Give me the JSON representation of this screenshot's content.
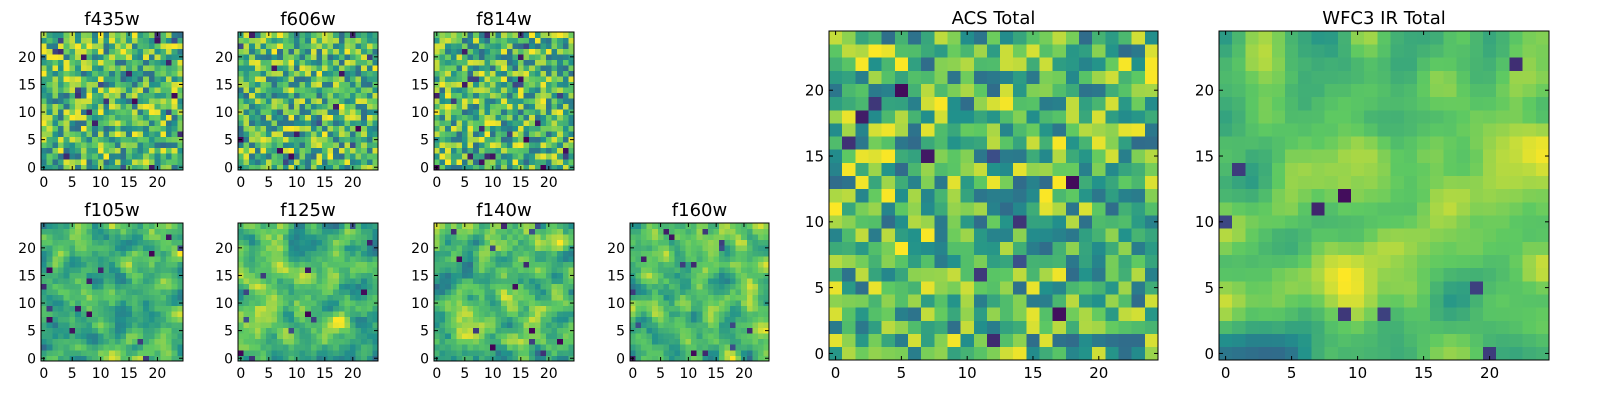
{
  "colormap": {
    "name": "viridis",
    "stops": [
      "#440154",
      "#3b528b",
      "#21918c",
      "#5ec962",
      "#fde725"
    ]
  },
  "chart_data": [
    {
      "type": "heatmap",
      "title": "f435w",
      "grid": [
        25,
        25
      ],
      "xlim": [
        -0.5,
        24.5
      ],
      "ylim": [
        -0.5,
        24.5
      ],
      "xticks": [
        "0",
        "5",
        "10",
        "15",
        "20"
      ],
      "yticks": [
        "0",
        "5",
        "10",
        "15",
        "20"
      ]
    },
    {
      "type": "heatmap",
      "title": "f606w",
      "grid": [
        25,
        25
      ],
      "xlim": [
        -0.5,
        24.5
      ],
      "ylim": [
        -0.5,
        24.5
      ],
      "xticks": [
        "0",
        "5",
        "10",
        "15",
        "20"
      ],
      "yticks": [
        "0",
        "5",
        "10",
        "15",
        "20"
      ]
    },
    {
      "type": "heatmap",
      "title": "f814w",
      "grid": [
        25,
        25
      ],
      "xlim": [
        -0.5,
        24.5
      ],
      "ylim": [
        -0.5,
        24.5
      ],
      "xticks": [
        "0",
        "5",
        "10",
        "15",
        "20"
      ],
      "yticks": [
        "0",
        "5",
        "10",
        "15",
        "20"
      ]
    },
    {
      "type": "heatmap",
      "title": "f105w",
      "grid": [
        25,
        25
      ],
      "xlim": [
        -0.5,
        24.5
      ],
      "ylim": [
        -0.5,
        24.5
      ],
      "xticks": [
        "0",
        "5",
        "10",
        "15",
        "20"
      ],
      "yticks": [
        "0",
        "5",
        "10",
        "15",
        "20"
      ]
    },
    {
      "type": "heatmap",
      "title": "f125w",
      "grid": [
        25,
        25
      ],
      "xlim": [
        -0.5,
        24.5
      ],
      "ylim": [
        -0.5,
        24.5
      ],
      "xticks": [
        "0",
        "5",
        "10",
        "15",
        "20"
      ],
      "yticks": [
        "0",
        "5",
        "10",
        "15",
        "20"
      ]
    },
    {
      "type": "heatmap",
      "title": "f140w",
      "grid": [
        25,
        25
      ],
      "xlim": [
        -0.5,
        24.5
      ],
      "ylim": [
        -0.5,
        24.5
      ],
      "xticks": [
        "0",
        "5",
        "10",
        "15",
        "20"
      ],
      "yticks": [
        "0",
        "5",
        "10",
        "15",
        "20"
      ]
    },
    {
      "type": "heatmap",
      "title": "f160w",
      "grid": [
        25,
        25
      ],
      "xlim": [
        -0.5,
        24.5
      ],
      "ylim": [
        -0.5,
        24.5
      ],
      "xticks": [
        "0",
        "5",
        "10",
        "15",
        "20"
      ],
      "yticks": [
        "0",
        "5",
        "10",
        "15",
        "20"
      ]
    },
    {
      "type": "heatmap",
      "title": "ACS Total",
      "grid": [
        25,
        25
      ],
      "xlim": [
        -0.5,
        24.5
      ],
      "ylim": [
        -0.5,
        24.5
      ],
      "xticks": [
        "0",
        "5",
        "10",
        "15",
        "20"
      ],
      "yticks": [
        "0",
        "5",
        "10",
        "15",
        "20"
      ]
    },
    {
      "type": "heatmap",
      "title": "WFC3 IR Total",
      "grid": [
        25,
        25
      ],
      "xlim": [
        -0.5,
        24.5
      ],
      "ylim": [
        -0.5,
        24.5
      ],
      "xticks": [
        "0",
        "5",
        "10",
        "15",
        "20"
      ],
      "yticks": [
        "0",
        "5",
        "10",
        "15",
        "20"
      ]
    }
  ]
}
